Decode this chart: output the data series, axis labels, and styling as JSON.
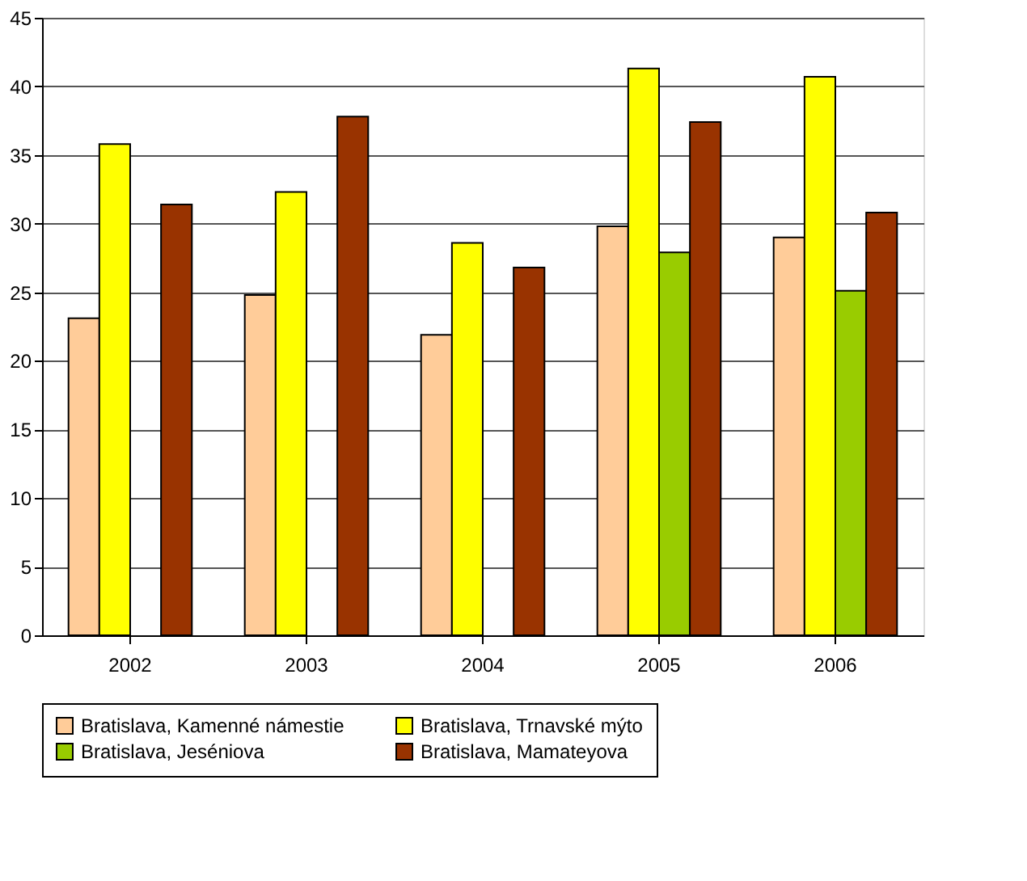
{
  "chart_data": {
    "type": "bar",
    "categories": [
      "2002",
      "2003",
      "2004",
      "2005",
      "2006"
    ],
    "series": [
      {
        "name": "Bratislava, Kamenné námestie",
        "color": "#ffcc99",
        "values": [
          23.1,
          24.8,
          21.9,
          29.8,
          29.0
        ]
      },
      {
        "name": "Bratislava, Trnavské mýto",
        "color": "#ffff00",
        "values": [
          35.8,
          32.3,
          28.6,
          41.3,
          40.7
        ]
      },
      {
        "name": "Bratislava, Jeséniova",
        "color": "#99cc00",
        "values": [
          null,
          null,
          null,
          27.9,
          25.1
        ]
      },
      {
        "name": "Bratislava, Mamateyova",
        "color": "#993300",
        "values": [
          31.4,
          37.8,
          26.8,
          37.4,
          30.8
        ]
      }
    ],
    "ylim": [
      0,
      45
    ],
    "yticks": [
      0,
      5,
      10,
      15,
      20,
      25,
      30,
      35,
      40,
      45
    ],
    "grid": "y",
    "legend": "bottom"
  }
}
